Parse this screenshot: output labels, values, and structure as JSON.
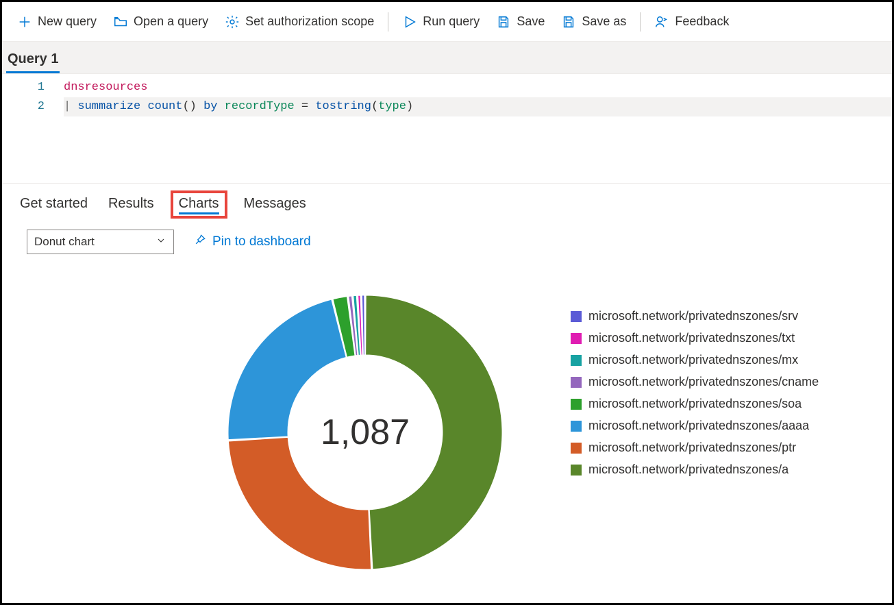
{
  "toolbar": {
    "new_query": "New query",
    "open_query": "Open a query",
    "set_scope": "Set authorization scope",
    "run_query": "Run query",
    "save": "Save",
    "save_as": "Save as",
    "feedback": "Feedback",
    "icon_color": "#0078d4"
  },
  "query_tabs": {
    "active": "Query 1"
  },
  "editor": {
    "gutter": [
      "1",
      "2"
    ],
    "line1": {
      "ident": "dnsresources"
    },
    "line2": {
      "pipe": "| ",
      "kw_summarize": "summarize",
      "func_count": "count",
      "parens": "()",
      "kw_by": "by",
      "param1": "recordType",
      "eq": " = ",
      "func_tostring": "tostring",
      "open": "(",
      "param2": "type",
      "close": ")"
    }
  },
  "result_tabs": {
    "get_started": "Get started",
    "results": "Results",
    "charts": "Charts",
    "messages": "Messages",
    "active": "charts",
    "highlight_color": "#e8453c"
  },
  "controls": {
    "chart_type": "Donut chart",
    "pin_label": "Pin to dashboard",
    "link_color": "#0078d4"
  },
  "chart": {
    "type": "donut",
    "center_label": "1,087",
    "outer_radius": 200,
    "inner_radius": 113,
    "background_color": "#ffffff",
    "slices": [
      {
        "label": "microsoft.network/privatednszones/a",
        "value": 535,
        "color": "#59862a"
      },
      {
        "label": "microsoft.network/privatednszones/ptr",
        "value": 270,
        "color": "#d35c27"
      },
      {
        "label": "microsoft.network/privatednszones/aaaa",
        "value": 240,
        "color": "#2d95d9"
      },
      {
        "label": "microsoft.network/privatednszones/soa",
        "value": 20,
        "color": "#2da02c"
      },
      {
        "label": "microsoft.network/privatednszones/cname",
        "value": 6,
        "color": "#9467bd"
      },
      {
        "label": "microsoft.network/privatednszones/mx",
        "value": 6,
        "color": "#17a2a2"
      },
      {
        "label": "microsoft.network/privatednszones/txt",
        "value": 5,
        "color": "#e01db2"
      },
      {
        "label": "microsoft.network/privatednszones/srv",
        "value": 5,
        "color": "#5b5bd6"
      }
    ],
    "legend_order": [
      {
        "label": "microsoft.network/privatednszones/srv",
        "color": "#5b5bd6"
      },
      {
        "label": "microsoft.network/privatednszones/txt",
        "color": "#e01db2"
      },
      {
        "label": "microsoft.network/privatednszones/mx",
        "color": "#17a2a2"
      },
      {
        "label": "microsoft.network/privatednszones/cname",
        "color": "#9467bd"
      },
      {
        "label": "microsoft.network/privatednszones/soa",
        "color": "#2da02c"
      },
      {
        "label": "microsoft.network/privatednszones/aaaa",
        "color": "#2d95d9"
      },
      {
        "label": "microsoft.network/privatednszones/ptr",
        "color": "#d35c27"
      },
      {
        "label": "microsoft.network/privatednszones/a",
        "color": "#59862a"
      }
    ]
  }
}
